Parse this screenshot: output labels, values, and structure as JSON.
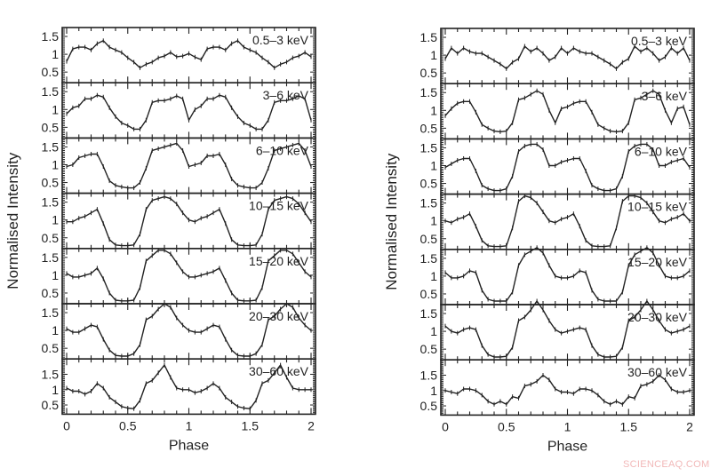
{
  "figure": {
    "watermark": "SCIENCEAQ.COM",
    "ylabel": "Normalised Intensity",
    "xlabel": "Phase"
  },
  "chart_data": [
    {
      "type": "line",
      "title": "Pulse profiles (left)",
      "xlabel": "Phase",
      "ylabel": "Normalised Intensity",
      "xlim": [
        0,
        2
      ],
      "xticks": [
        0,
        0.5,
        1,
        1.5,
        2
      ],
      "grid": false,
      "legend_position": "panel labels top-right",
      "x": [
        0,
        0.05,
        0.1,
        0.15,
        0.2,
        0.25,
        0.3,
        0.35,
        0.4,
        0.45,
        0.5,
        0.55,
        0.6,
        0.65,
        0.7,
        0.75,
        0.8,
        0.85,
        0.9,
        0.95,
        1.0,
        1.05,
        1.1,
        1.15,
        1.2,
        1.25,
        1.3,
        1.35,
        1.4,
        1.45,
        1.5,
        1.55,
        1.6,
        1.65,
        1.7,
        1.75,
        1.8,
        1.85,
        1.9,
        1.95,
        2.0
      ],
      "series": [
        {
          "name": "0.5-3 keV",
          "ylim": [
            0.2,
            1.75
          ],
          "yticks": [
            0.5,
            1,
            1.5
          ],
          "values": [
            0.8,
            1.15,
            1.2,
            1.2,
            1.12,
            1.3,
            1.38,
            1.2,
            1.12,
            1.05,
            0.9,
            0.78,
            0.62,
            0.72,
            0.78,
            0.9,
            0.95,
            1.05,
            0.93,
            0.95,
            1.02,
            0.92,
            0.85,
            1.15,
            1.2,
            1.2,
            1.12,
            1.3,
            1.38,
            1.2,
            1.12,
            1.05,
            0.9,
            0.78,
            0.62,
            0.72,
            0.78,
            0.9,
            0.95,
            1.05,
            0.93
          ]
        },
        {
          "name": "3-6 keV",
          "ylim": [
            0.2,
            1.75
          ],
          "yticks": [
            0.5,
            1,
            1.5
          ],
          "values": [
            0.88,
            1.05,
            1.1,
            1.3,
            1.3,
            1.4,
            1.35,
            1.05,
            0.8,
            0.62,
            0.55,
            0.45,
            0.45,
            0.7,
            1.2,
            1.25,
            1.25,
            1.3,
            1.38,
            1.3,
            0.7,
            1.0,
            1.1,
            1.3,
            1.3,
            1.4,
            1.35,
            1.05,
            0.8,
            0.62,
            0.55,
            0.45,
            0.45,
            0.7,
            1.2,
            1.25,
            1.25,
            1.3,
            1.38,
            1.3,
            0.7
          ]
        },
        {
          "name": "6-10 keV",
          "ylim": [
            0.2,
            1.75
          ],
          "yticks": [
            0.5,
            1,
            1.5
          ],
          "values": [
            0.95,
            1.0,
            1.2,
            1.25,
            1.3,
            1.3,
            0.95,
            0.55,
            0.42,
            0.38,
            0.35,
            0.35,
            0.5,
            0.9,
            1.4,
            1.45,
            1.5,
            1.55,
            1.6,
            1.4,
            0.95,
            1.0,
            1.05,
            1.25,
            1.25,
            1.3,
            1.0,
            0.6,
            0.42,
            0.38,
            0.35,
            0.35,
            0.5,
            0.9,
            1.4,
            1.45,
            1.5,
            1.55,
            1.6,
            1.4,
            0.95
          ]
        },
        {
          "name": "10-15 keV",
          "ylim": [
            0.2,
            1.75
          ],
          "yticks": [
            0.5,
            1,
            1.5
          ],
          "values": [
            0.95,
            0.95,
            1.05,
            1.1,
            1.2,
            1.3,
            0.9,
            0.45,
            0.3,
            0.28,
            0.28,
            0.3,
            0.6,
            1.3,
            1.55,
            1.6,
            1.65,
            1.6,
            1.45,
            1.2,
            1.0,
            0.95,
            1.05,
            1.1,
            1.2,
            1.3,
            0.9,
            0.45,
            0.3,
            0.28,
            0.28,
            0.3,
            0.6,
            1.3,
            1.55,
            1.6,
            1.65,
            1.6,
            1.45,
            1.2,
            0.95
          ]
        },
        {
          "name": "15-20 keV",
          "ylim": [
            0.2,
            1.75
          ],
          "yticks": [
            0.5,
            1,
            1.5
          ],
          "values": [
            1.05,
            0.95,
            0.95,
            1.0,
            1.05,
            1.2,
            0.9,
            0.5,
            0.3,
            0.28,
            0.28,
            0.3,
            0.65,
            1.4,
            1.55,
            1.7,
            1.7,
            1.6,
            1.35,
            1.1,
            0.95,
            0.95,
            1.0,
            1.05,
            1.1,
            1.2,
            0.85,
            0.5,
            0.3,
            0.28,
            0.28,
            0.3,
            0.65,
            1.4,
            1.55,
            1.7,
            1.7,
            1.6,
            1.35,
            1.1,
            0.95
          ]
        },
        {
          "name": "20-30 keV",
          "ylim": [
            0.2,
            1.75
          ],
          "yticks": [
            0.5,
            1,
            1.5
          ],
          "values": [
            1.05,
            0.95,
            0.95,
            1.05,
            1.15,
            1.1,
            0.75,
            0.45,
            0.3,
            0.28,
            0.28,
            0.35,
            0.6,
            1.3,
            1.4,
            1.6,
            1.75,
            1.65,
            1.35,
            1.15,
            1.0,
            0.95,
            0.95,
            1.05,
            1.15,
            1.1,
            0.75,
            0.45,
            0.3,
            0.28,
            0.28,
            0.35,
            0.6,
            1.3,
            1.4,
            1.6,
            1.75,
            1.65,
            1.35,
            1.15,
            1.0
          ]
        },
        {
          "name": "30-60 keV",
          "ylim": [
            0.2,
            2.0
          ],
          "yticks": [
            0.5,
            1,
            1.5
          ],
          "values": [
            1.05,
            0.95,
            0.95,
            0.85,
            0.95,
            1.2,
            1.05,
            0.75,
            0.6,
            0.45,
            0.4,
            0.38,
            0.65,
            1.2,
            1.3,
            1.55,
            1.8,
            1.4,
            1.05,
            1.0,
            1.0,
            0.9,
            0.95,
            1.05,
            1.2,
            1.05,
            0.75,
            0.6,
            0.45,
            0.4,
            0.38,
            0.65,
            1.2,
            1.3,
            1.55,
            1.8,
            1.4,
            1.05,
            1.0,
            1.0,
            1.0
          ]
        }
      ]
    },
    {
      "type": "line",
      "title": "Pulse profiles (right)",
      "xlabel": "Phase",
      "ylabel": "Normalised Intensity",
      "xlim": [
        0,
        2
      ],
      "xticks": [
        0,
        0.5,
        1,
        1.5,
        2
      ],
      "grid": false,
      "legend_position": "panel labels top-right",
      "x": [
        0,
        0.05,
        0.1,
        0.15,
        0.2,
        0.25,
        0.3,
        0.35,
        0.4,
        0.45,
        0.5,
        0.55,
        0.6,
        0.65,
        0.7,
        0.75,
        0.8,
        0.85,
        0.9,
        0.95,
        1.0,
        1.05,
        1.1,
        1.15,
        1.2,
        1.25,
        1.3,
        1.35,
        1.4,
        1.45,
        1.5,
        1.55,
        1.6,
        1.65,
        1.7,
        1.75,
        1.8,
        1.85,
        1.9,
        1.95,
        2.0
      ],
      "series": [
        {
          "name": "0.5-3 keV",
          "ylim": [
            0.2,
            1.75
          ],
          "yticks": [
            0.5,
            1,
            1.5
          ],
          "values": [
            0.9,
            1.2,
            1.05,
            1.2,
            1.1,
            1.05,
            1.05,
            0.95,
            0.85,
            0.75,
            0.62,
            0.8,
            0.9,
            1.25,
            1.1,
            1.2,
            1.05,
            0.85,
            0.95,
            1.2,
            1.05,
            1.2,
            1.1,
            1.05,
            1.05,
            0.95,
            0.85,
            0.75,
            0.62,
            0.8,
            0.9,
            1.25,
            1.1,
            1.2,
            1.05,
            0.85,
            0.95,
            1.2,
            1.05,
            1.2,
            0.85
          ]
        },
        {
          "name": "3-6 keV",
          "ylim": [
            0.2,
            1.75
          ],
          "yticks": [
            0.5,
            1,
            1.5
          ],
          "values": [
            0.85,
            1.05,
            1.2,
            1.25,
            1.25,
            0.95,
            0.6,
            0.5,
            0.42,
            0.4,
            0.42,
            0.65,
            1.3,
            1.35,
            1.45,
            1.55,
            1.45,
            1.0,
            0.65,
            1.05,
            1.1,
            1.2,
            1.25,
            1.25,
            0.95,
            0.6,
            0.5,
            0.42,
            0.4,
            0.42,
            0.65,
            1.3,
            1.35,
            1.45,
            1.55,
            1.45,
            1.0,
            0.65,
            1.05,
            1.1,
            0.6
          ]
        },
        {
          "name": "6-10 keV",
          "ylim": [
            0.2,
            1.75
          ],
          "yticks": [
            0.5,
            1,
            1.5
          ],
          "values": [
            0.95,
            1.05,
            1.15,
            1.2,
            1.2,
            0.85,
            0.45,
            0.35,
            0.3,
            0.3,
            0.35,
            0.7,
            1.4,
            1.55,
            1.6,
            1.6,
            1.45,
            1.0,
            1.0,
            1.1,
            1.15,
            1.2,
            1.2,
            0.85,
            0.45,
            0.35,
            0.3,
            0.3,
            0.35,
            0.7,
            1.4,
            1.55,
            1.6,
            1.6,
            1.45,
            1.0,
            1.0,
            1.1,
            1.15,
            1.2,
            0.95
          ]
        },
        {
          "name": "10-15 keV",
          "ylim": [
            0.2,
            1.75
          ],
          "yticks": [
            0.5,
            1,
            1.5
          ],
          "values": [
            1.0,
            0.95,
            1.05,
            1.1,
            1.2,
            0.85,
            0.45,
            0.3,
            0.28,
            0.28,
            0.3,
            0.8,
            1.55,
            1.7,
            1.65,
            1.5,
            1.25,
            1.0,
            0.95,
            1.05,
            1.1,
            1.2,
            0.85,
            0.45,
            0.3,
            0.28,
            0.28,
            0.3,
            0.8,
            1.55,
            1.7,
            1.7,
            1.65,
            1.5,
            1.25,
            1.0,
            0.95,
            1.05,
            1.1,
            1.2,
            1.0
          ]
        },
        {
          "name": "15-20 keV",
          "ylim": [
            0.2,
            1.75
          ],
          "yticks": [
            0.5,
            1,
            1.5
          ],
          "values": [
            1.1,
            0.95,
            0.95,
            1.0,
            1.15,
            1.1,
            0.6,
            0.35,
            0.3,
            0.3,
            0.3,
            0.55,
            1.3,
            1.6,
            1.7,
            1.8,
            1.65,
            1.3,
            1.0,
            0.95,
            0.95,
            1.0,
            1.15,
            1.1,
            0.6,
            0.35,
            0.3,
            0.3,
            0.3,
            0.55,
            1.3,
            1.6,
            1.7,
            1.8,
            1.65,
            1.3,
            1.0,
            0.95,
            0.95,
            1.0,
            1.15
          ]
        },
        {
          "name": "20-30 keV",
          "ylim": [
            0.2,
            1.75
          ],
          "yticks": [
            0.5,
            1,
            1.5
          ],
          "values": [
            1.15,
            1.0,
            0.95,
            1.05,
            1.1,
            1.05,
            0.6,
            0.35,
            0.28,
            0.28,
            0.3,
            0.55,
            1.3,
            1.4,
            1.6,
            1.85,
            1.6,
            1.3,
            1.05,
            0.95,
            1.0,
            1.05,
            1.1,
            1.05,
            0.6,
            0.35,
            0.28,
            0.28,
            0.3,
            0.55,
            1.3,
            1.4,
            1.6,
            1.85,
            1.6,
            1.3,
            1.05,
            0.95,
            1.0,
            1.05,
            1.15
          ]
        },
        {
          "name": "30-60 keV",
          "ylim": [
            0.2,
            2.0
          ],
          "yticks": [
            0.5,
            1,
            1.5
          ],
          "values": [
            1.0,
            0.95,
            0.9,
            1.05,
            1.05,
            1.0,
            0.85,
            0.65,
            0.55,
            0.65,
            0.55,
            0.8,
            0.75,
            1.15,
            1.2,
            1.3,
            1.5,
            1.35,
            1.05,
            0.95,
            0.95,
            0.9,
            1.05,
            1.05,
            1.0,
            0.85,
            0.65,
            0.55,
            0.65,
            0.55,
            0.8,
            0.75,
            1.15,
            1.2,
            1.3,
            1.5,
            1.35,
            1.05,
            0.95,
            0.95,
            1.0
          ]
        }
      ]
    }
  ]
}
